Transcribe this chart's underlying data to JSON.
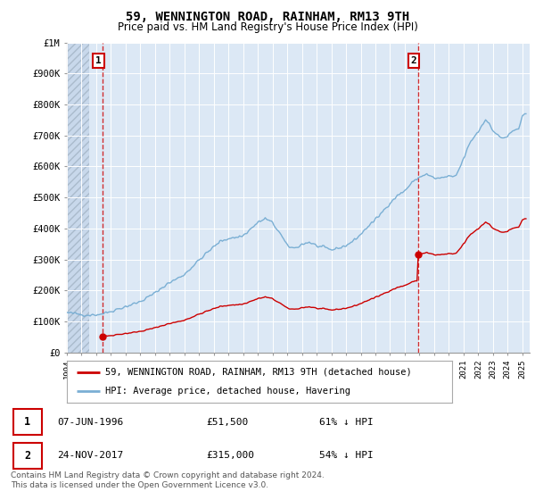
{
  "title": "59, WENNINGTON ROAD, RAINHAM, RM13 9TH",
  "subtitle": "Price paid vs. HM Land Registry's House Price Index (HPI)",
  "property_label": "59, WENNINGTON ROAD, RAINHAM, RM13 9TH (detached house)",
  "hpi_label": "HPI: Average price, detached house, Havering",
  "annotation1": {
    "label": "1",
    "date": "07-JUN-1996",
    "price": 51500,
    "note": "61% ↓ HPI"
  },
  "annotation2": {
    "label": "2",
    "date": "24-NOV-2017",
    "price": 315000,
    "note": "54% ↓ HPI"
  },
  "footnote": "Contains HM Land Registry data © Crown copyright and database right 2024.\nThis data is licensed under the Open Government Licence v3.0.",
  "property_color": "#cc0000",
  "hpi_color": "#7aafd4",
  "annotation_color": "#cc0000",
  "ylim": [
    0,
    1000000
  ],
  "yticks": [
    0,
    100000,
    200000,
    300000,
    400000,
    500000,
    600000,
    700000,
    800000,
    900000,
    1000000
  ],
  "ytick_labels": [
    "£0",
    "£100K",
    "£200K",
    "£300K",
    "£400K",
    "£500K",
    "£600K",
    "£700K",
    "£800K",
    "£900K",
    "£1M"
  ],
  "xlim_start": 1994.0,
  "xlim_end": 2025.5,
  "xticks": [
    1994,
    1995,
    1996,
    1997,
    1998,
    1999,
    2000,
    2001,
    2002,
    2003,
    2004,
    2005,
    2006,
    2007,
    2008,
    2009,
    2010,
    2011,
    2012,
    2013,
    2014,
    2015,
    2016,
    2017,
    2018,
    2019,
    2020,
    2021,
    2022,
    2023,
    2024,
    2025
  ],
  "sale1_x": 1996.458,
  "sale1_y": 51500,
  "sale2_x": 2017.9,
  "sale2_y": 315000
}
